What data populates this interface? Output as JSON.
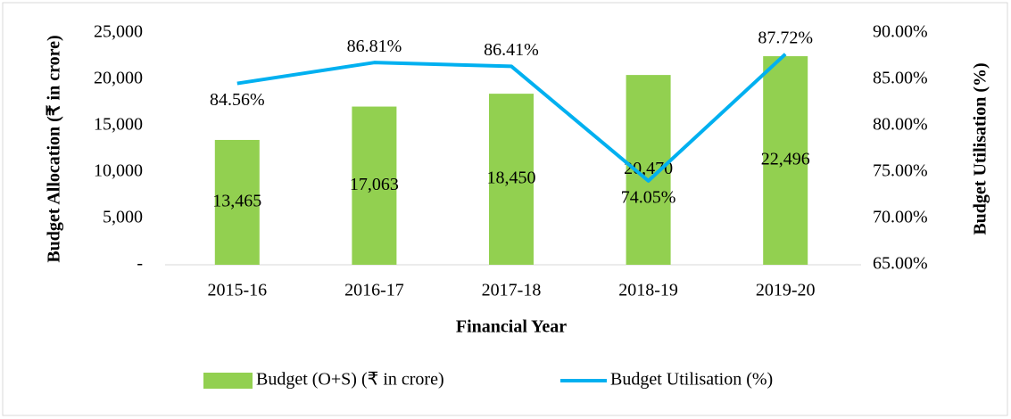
{
  "chart_data": {
    "type": "bar_line",
    "categories": [
      "2015-16",
      "2016-17",
      "2017-18",
      "2018-19",
      "2019-20"
    ],
    "xlabel": "Financial Year",
    "ylabel": "Budget Allocation (₹ in crore)",
    "y2label": "Budget Utilisation (%)",
    "ylim": [
      0,
      25000
    ],
    "yticks": [
      {
        "value": 0,
        "label": "-"
      },
      {
        "value": 5000,
        "label": "5,000"
      },
      {
        "value": 10000,
        "label": "10,000"
      },
      {
        "value": 15000,
        "label": "15,000"
      },
      {
        "value": 20000,
        "label": "20,000"
      },
      {
        "value": 25000,
        "label": "25,000"
      }
    ],
    "y2lim": [
      65,
      90
    ],
    "y2ticks": [
      {
        "value": 65,
        "label": "65.00%"
      },
      {
        "value": 70,
        "label": "70.00%"
      },
      {
        "value": 75,
        "label": "75.00%"
      },
      {
        "value": 80,
        "label": "80.00%"
      },
      {
        "value": 85,
        "label": "85.00%"
      },
      {
        "value": 90,
        "label": "90.00%"
      }
    ],
    "legend": "bottom",
    "series": [
      {
        "name": "Budget (O+S) (₹ in crore)",
        "type": "bar",
        "color": "#92d050",
        "values": [
          13465,
          17063,
          18450,
          20470,
          22496
        ],
        "value_labels": [
          "13,465",
          "17,063",
          "18,450",
          "20,470",
          "22,496"
        ]
      },
      {
        "name": "Budget Utilisation (%)",
        "type": "line",
        "axis": "y2",
        "color": "#00b0f0",
        "values": [
          84.56,
          86.81,
          86.41,
          74.05,
          87.72
        ],
        "value_labels": [
          "84.56%",
          "86.81%",
          "86.41%",
          "74.05%",
          "87.72%"
        ]
      }
    ]
  }
}
